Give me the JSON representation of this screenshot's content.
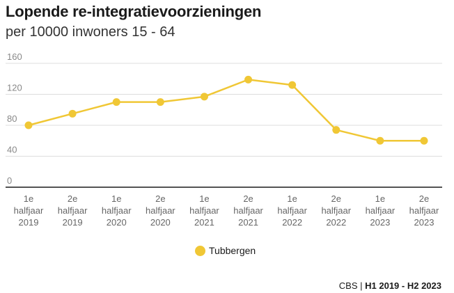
{
  "header": {
    "title": "Lopende re-integratievoorzieningen",
    "subtitle": "per 10000 inwoners 15 - 64"
  },
  "chart_data": {
    "type": "line",
    "title": "Lopende re-integratievoorzieningen",
    "subtitle": "per 10000 inwoners 15 - 64",
    "categories": [
      [
        "1e",
        "halfjaar",
        "2019"
      ],
      [
        "2e",
        "halfjaar",
        "2019"
      ],
      [
        "1e",
        "halfjaar",
        "2020"
      ],
      [
        "2e",
        "halfjaar",
        "2020"
      ],
      [
        "1e",
        "halfjaar",
        "2021"
      ],
      [
        "2e",
        "halfjaar",
        "2021"
      ],
      [
        "1e",
        "halfjaar",
        "2022"
      ],
      [
        "2e",
        "halfjaar",
        "2022"
      ],
      [
        "1e",
        "halfjaar",
        "2023"
      ],
      [
        "2e",
        "halfjaar",
        "2023"
      ]
    ],
    "series": [
      {
        "name": "Tubbergen",
        "color": "#f0c735",
        "values": [
          80,
          95,
          110,
          110,
          117,
          139,
          132,
          74,
          60,
          60
        ]
      }
    ],
    "yticks": [
      0,
      40,
      80,
      120,
      160
    ],
    "ylim": [
      0,
      160
    ],
    "grid": true,
    "legend_position": "bottom-center"
  },
  "legend": {
    "label": "Tubbergen",
    "color": "#f0c735"
  },
  "source": {
    "org": "CBS",
    "separator": "|",
    "period": "H1 2019 - H2 2023"
  }
}
